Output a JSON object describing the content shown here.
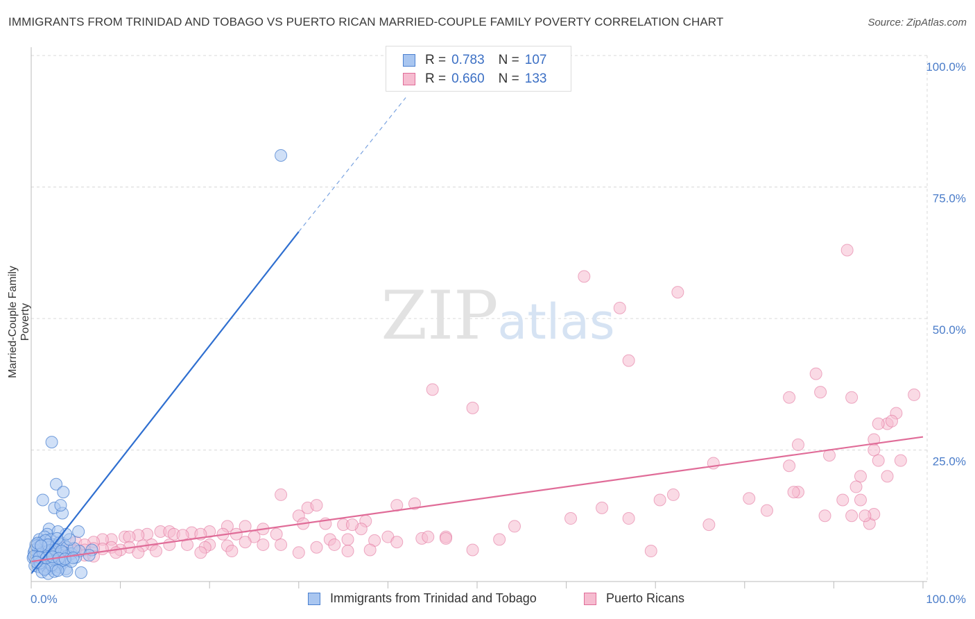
{
  "title": "IMMIGRANTS FROM TRINIDAD AND TOBAGO VS PUERTO RICAN MARRIED-COUPLE FAMILY POVERTY CORRELATION CHART",
  "source": "Source: ZipAtlas.com",
  "watermark": {
    "zip": "ZIP",
    "atlas": "atlas"
  },
  "colors": {
    "blue": "#4a80d0",
    "blue_fill": "#a9c6f0",
    "pink": "#e06c98",
    "pink_fill": "#f6bcd0",
    "axis_text": "#4a7cc9",
    "grid": "#d8d8d8"
  },
  "legend": {
    "rows": [
      {
        "r_label": "R =",
        "r_value": "0.783",
        "n_label": "N =",
        "n_value": "107"
      },
      {
        "r_label": "R =",
        "r_value": "0.660",
        "n_label": "N =",
        "n_value": "133"
      }
    ]
  },
  "series_labels": {
    "blue": "Immigrants from Trinidad and Tobago",
    "pink": "Puerto Ricans"
  },
  "chart_data": {
    "type": "scatter",
    "title": "IMMIGRANTS FROM TRINIDAD AND TOBAGO VS PUERTO RICAN MARRIED-COUPLE FAMILY POVERTY CORRELATION CHART",
    "xlabel": "",
    "ylabel": "Married-Couple Family Poverty",
    "xlim": [
      0,
      100
    ],
    "ylim": [
      0,
      100
    ],
    "x_tick_labels": [
      "0.0%",
      "100.0%"
    ],
    "y_tick_labels": [
      "100.0%",
      "75.0%",
      "50.0%",
      "25.0%"
    ],
    "y_ticks": [
      100,
      75,
      50,
      25
    ],
    "series": [
      {
        "name": "Immigrants from Trinidad and Tobago",
        "color": "#4a80d0",
        "r": 0.783,
        "n": 107,
        "trend": {
          "x0": 0,
          "y0": 1.5,
          "x1": 30,
          "y1": 66.5,
          "dash_to_x": 42,
          "dash_to_y": 92
        },
        "points": [
          [
            28,
            81
          ],
          [
            2.3,
            26.5
          ],
          [
            2.8,
            18.5
          ],
          [
            3.6,
            17
          ],
          [
            1.3,
            15.5
          ],
          [
            2.6,
            14
          ],
          [
            3.5,
            13
          ],
          [
            3.3,
            14.5
          ],
          [
            5.3,
            9.5
          ],
          [
            2,
            10
          ],
          [
            1.8,
            9
          ],
          [
            0.9,
            8
          ],
          [
            1.2,
            7.5
          ],
          [
            1.5,
            8.5
          ],
          [
            2.2,
            8
          ],
          [
            2.5,
            7
          ],
          [
            0.5,
            7
          ],
          [
            0.8,
            6.5
          ],
          [
            1.0,
            6
          ],
          [
            1.4,
            6.5
          ],
          [
            1.7,
            7
          ],
          [
            2.0,
            6.5
          ],
          [
            2.4,
            6
          ],
          [
            2.8,
            6.8
          ],
          [
            3.2,
            7.5
          ],
          [
            3.6,
            7.2
          ],
          [
            4.0,
            6.5
          ],
          [
            0.3,
            5.5
          ],
          [
            0.6,
            5
          ],
          [
            0.9,
            5.2
          ],
          [
            1.1,
            5.8
          ],
          [
            1.3,
            4.8
          ],
          [
            1.6,
            5.3
          ],
          [
            1.9,
            5.6
          ],
          [
            2.1,
            4.9
          ],
          [
            2.3,
            5.4
          ],
          [
            2.6,
            5.1
          ],
          [
            2.9,
            4.6
          ],
          [
            3.1,
            5.2
          ],
          [
            3.4,
            4.7
          ],
          [
            3.7,
            5.5
          ],
          [
            4.1,
            4.9
          ],
          [
            4.5,
            5.3
          ],
          [
            5.0,
            4.6
          ],
          [
            0.2,
            4.5
          ],
          [
            0.5,
            4.2
          ],
          [
            0.7,
            4.0
          ],
          [
            1.0,
            4.4
          ],
          [
            1.2,
            3.9
          ],
          [
            1.5,
            4.1
          ],
          [
            1.8,
            3.6
          ],
          [
            2.0,
            4.0
          ],
          [
            2.2,
            3.5
          ],
          [
            2.5,
            3.8
          ],
          [
            2.7,
            3.3
          ],
          [
            3.0,
            3.7
          ],
          [
            3.3,
            3.2
          ],
          [
            3.6,
            3.6
          ],
          [
            0.4,
            3.0
          ],
          [
            0.8,
            2.8
          ],
          [
            1.1,
            3.2
          ],
          [
            1.4,
            2.6
          ],
          [
            1.7,
            2.9
          ],
          [
            2.1,
            2.5
          ],
          [
            2.4,
            2.8
          ],
          [
            2.8,
            2.3
          ],
          [
            3.2,
            2.7
          ],
          [
            3.9,
            2.4
          ],
          [
            1.2,
            1.8
          ],
          [
            1.9,
            1.5
          ],
          [
            2.6,
            1.9
          ],
          [
            4.0,
            2.0
          ],
          [
            5.6,
            1.7
          ],
          [
            6.8,
            6.0
          ],
          [
            6.5,
            5.0
          ],
          [
            5.4,
            5.8
          ],
          [
            4.8,
            6.3
          ],
          [
            4.3,
            8.0
          ],
          [
            3.9,
            9.0
          ],
          [
            3.0,
            9.5
          ],
          [
            0.4,
            6.0
          ],
          [
            0.6,
            6.8
          ],
          [
            1.6,
            7.8
          ],
          [
            2.9,
            8.2
          ],
          [
            0.3,
            4.8
          ],
          [
            1.0,
            3.5
          ],
          [
            1.8,
            5.0
          ],
          [
            2.5,
            4.3
          ],
          [
            3.5,
            4.0
          ],
          [
            4.5,
            3.8
          ],
          [
            1.3,
            5.6
          ],
          [
            2.0,
            5.9
          ],
          [
            2.7,
            6.1
          ],
          [
            3.4,
            5.8
          ],
          [
            0.7,
            7.3
          ],
          [
            1.9,
            7.0
          ],
          [
            1.1,
            6.8
          ],
          [
            2.3,
            3.1
          ],
          [
            1.5,
            2.3
          ],
          [
            3.0,
            2.1
          ],
          [
            0.9,
            4.6
          ],
          [
            1.7,
            4.5
          ],
          [
            2.4,
            4.7
          ],
          [
            3.1,
            4.4
          ],
          [
            3.8,
            4.3
          ],
          [
            4.7,
            4.5
          ],
          [
            0.6,
            3.7
          ]
        ]
      },
      {
        "name": "Puerto Ricans",
        "color": "#e06c98",
        "r": 0.66,
        "n": 133,
        "trend": {
          "x0": 0,
          "y0": 3.8,
          "x1": 100,
          "y1": 27.5
        },
        "points": [
          [
            91.5,
            63
          ],
          [
            62,
            58
          ],
          [
            72.5,
            55
          ],
          [
            66,
            52
          ],
          [
            45,
            36.5
          ],
          [
            67,
            42
          ],
          [
            49.5,
            33
          ],
          [
            88,
            39.5
          ],
          [
            85,
            35
          ],
          [
            88.5,
            36
          ],
          [
            92,
            35
          ],
          [
            99,
            35.5
          ],
          [
            97,
            32
          ],
          [
            96,
            30
          ],
          [
            95,
            30
          ],
          [
            96.5,
            30.5
          ],
          [
            94.5,
            27
          ],
          [
            86,
            26
          ],
          [
            89.5,
            24
          ],
          [
            94.5,
            25
          ],
          [
            97.5,
            23
          ],
          [
            95,
            23
          ],
          [
            76.5,
            22.5
          ],
          [
            85,
            22
          ],
          [
            93,
            20
          ],
          [
            96,
            20
          ],
          [
            92.5,
            18
          ],
          [
            86,
            17
          ],
          [
            85.5,
            17
          ],
          [
            80.5,
            15.8
          ],
          [
            72,
            16.5
          ],
          [
            70.5,
            15.5
          ],
          [
            91,
            15.5
          ],
          [
            93,
            15.5
          ],
          [
            64,
            14
          ],
          [
            43,
            14.8
          ],
          [
            28,
            16.5
          ],
          [
            31,
            14
          ],
          [
            32,
            14.5
          ],
          [
            41,
            14.5
          ],
          [
            82.5,
            13.5
          ],
          [
            89,
            12.5
          ],
          [
            92,
            12.5
          ],
          [
            94,
            11
          ],
          [
            94.5,
            12.8
          ],
          [
            67,
            12
          ],
          [
            60.5,
            12
          ],
          [
            54.2,
            10.5
          ],
          [
            30,
            12.5
          ],
          [
            37.5,
            11.5
          ],
          [
            30.5,
            11
          ],
          [
            33,
            11
          ],
          [
            35,
            10.8
          ],
          [
            22,
            10.5
          ],
          [
            24,
            10.5
          ],
          [
            26,
            10
          ],
          [
            37,
            10
          ],
          [
            36,
            10.8
          ],
          [
            46.5,
            8.5
          ],
          [
            27.5,
            9
          ],
          [
            20,
            9.5
          ],
          [
            21.5,
            9
          ],
          [
            23,
            9
          ],
          [
            25,
            8.5
          ],
          [
            18,
            9.3
          ],
          [
            19,
            9
          ],
          [
            14.5,
            9.5
          ],
          [
            15.5,
            9.5
          ],
          [
            16,
            9
          ],
          [
            17,
            8.8
          ],
          [
            13,
            9
          ],
          [
            12,
            8.8
          ],
          [
            10.5,
            8.5
          ],
          [
            11,
            8.5
          ],
          [
            9,
            8
          ],
          [
            8,
            8
          ],
          [
            7,
            7.5
          ],
          [
            5,
            7.5
          ],
          [
            6,
            7
          ],
          [
            26,
            7
          ],
          [
            33.5,
            8
          ],
          [
            35.5,
            8
          ],
          [
            40,
            8.5
          ],
          [
            43.8,
            8.2
          ],
          [
            44.5,
            8.5
          ],
          [
            41,
            7.5
          ],
          [
            38.5,
            7.8
          ],
          [
            34,
            7
          ],
          [
            32,
            6.5
          ],
          [
            28,
            7
          ],
          [
            24,
            7.5
          ],
          [
            22,
            6.8
          ],
          [
            20,
            7
          ],
          [
            19.5,
            6.5
          ],
          [
            17.5,
            7
          ],
          [
            15.5,
            7
          ],
          [
            13.5,
            7
          ],
          [
            12.5,
            6.8
          ],
          [
            11,
            6.5
          ],
          [
            10,
            6
          ],
          [
            9,
            6.5
          ],
          [
            8,
            6.2
          ],
          [
            7,
            6.3
          ],
          [
            6,
            6
          ],
          [
            5,
            5.8
          ],
          [
            4,
            5.5
          ],
          [
            3.5,
            5.5
          ],
          [
            3,
            5.3
          ],
          [
            2.5,
            5.2
          ],
          [
            2,
            5
          ],
          [
            1.5,
            4.8
          ],
          [
            1,
            4.5
          ],
          [
            0.5,
            4.2
          ],
          [
            1.5,
            5.5
          ],
          [
            2.5,
            5.8
          ],
          [
            3.5,
            6.5
          ],
          [
            4.5,
            6.2
          ],
          [
            6,
            5
          ],
          [
            7,
            4.8
          ],
          [
            9.5,
            5.5
          ],
          [
            12,
            5.5
          ],
          [
            14,
            5.8
          ],
          [
            19,
            5.5
          ],
          [
            22.5,
            5.8
          ],
          [
            30,
            5.5
          ],
          [
            35.5,
            5.8
          ],
          [
            38,
            6
          ],
          [
            49.5,
            6
          ],
          [
            69.5,
            5.8
          ],
          [
            93.5,
            12.5
          ],
          [
            76,
            10.8
          ],
          [
            46.5,
            8.2
          ],
          [
            52.5,
            8
          ]
        ]
      }
    ]
  }
}
